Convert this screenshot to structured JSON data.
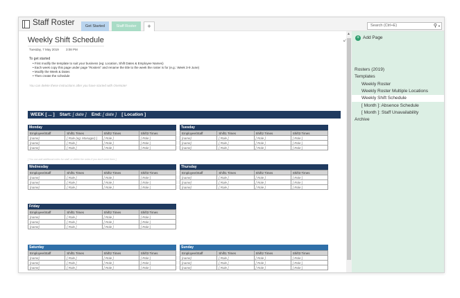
{
  "notebook": {
    "title": "Staff Roster"
  },
  "tabs": [
    {
      "label": "Get Started"
    },
    {
      "label": "Staff Roster"
    },
    {
      "label": "+"
    }
  ],
  "search": {
    "placeholder": "Search (Ctrl+E)"
  },
  "nav": {
    "add_page": "Add Page",
    "items": [
      {
        "label": "Rosters (2019)"
      },
      {
        "label": "Templates"
      },
      {
        "label": "Weekly Roster"
      },
      {
        "label": "Weekly Roster Multiple Locations"
      },
      {
        "label": "Weekly Shift Schedule"
      },
      {
        "label": "[ Month ]: Absence Schedule"
      },
      {
        "label": "[ Month ]: Staff Unavailability"
      },
      {
        "label": "Archive"
      }
    ]
  },
  "page": {
    "title": "Weekly Shift Schedule",
    "date": "Tuesday, 7 May 2019",
    "time": "3:08 PM",
    "instructions_heading": "To get started",
    "instructions": [
      "First modify the template to suit your business (eg: Location, Shift Dates & Employee Names)",
      "Each week copy this page under page \"Rosters\" and rename the title to the week the roster is for (e.g.: Week 3-9 June)",
      "Modify the Week & Dates",
      "Then create the schedule"
    ],
    "delete_note": "You can delete these instructions after you have started with OneNote!"
  },
  "week_bar": {
    "week_label": "WEEK",
    "week_value": "[ ... ]",
    "start_label": "Start:",
    "start_value": "[ date ]",
    "end_label": "End:",
    "end_value": "[ date ]",
    "location": "[ Location ]"
  },
  "table_headers": [
    "Employee/Staff",
    "Shift1 Times",
    "Shift2 Times",
    "Shift3 Times"
  ],
  "monday_note": "[ You can add additional notes for staff, or delete the notes if you don't need them ]",
  "colors": {
    "dark_day": "#1f3a5f",
    "light_day": "#2f6fa8"
  },
  "days": [
    {
      "name": "Monday",
      "rows": [
        [
          "[name]",
          "[ Role (eg: Manager) ]",
          "[ Role ]",
          "[ Role ]"
        ],
        [
          "[name]",
          "[ Role ]",
          "[ Role ]",
          "[ Role ]"
        ],
        [
          "[name]",
          "[ Role ]",
          "[ Role ]",
          "[ Role ]"
        ]
      ]
    },
    {
      "name": "Tuesday",
      "rows": [
        [
          "[name]",
          "[ Role ]",
          "[ Role ]",
          "[ Role ]"
        ],
        [
          "[name]",
          "[ Role ]",
          "[ Role ]",
          "[ Role ]"
        ],
        [
          "[name]",
          "[ Role ]",
          "[ Role ]",
          "[ Role ]"
        ]
      ]
    },
    {
      "name": "Wednesday",
      "rows": [
        [
          "[name]",
          "[ Role ]",
          "[ Role ]",
          "[ Role ]"
        ],
        [
          "[name]",
          "[ Role ]",
          "[ Role ]",
          "[ Role ]"
        ],
        [
          "[name]",
          "[ Role ]",
          "[ Role ]",
          "[ Role ]"
        ]
      ]
    },
    {
      "name": "Thursday",
      "rows": [
        [
          "[name]",
          "[ Role ]",
          "[ Role ]",
          "[ Role ]"
        ],
        [
          "[name]",
          "[ Role ]",
          "[ Role ]",
          "[ Role ]"
        ],
        [
          "[name]",
          "[ Role ]",
          "[ Role ]",
          "[ Role ]"
        ]
      ]
    },
    {
      "name": "Friday",
      "rows": [
        [
          "[name]",
          "[ Role ]",
          "[ Role ]",
          "[ Role ]"
        ],
        [
          "[name]",
          "[ Role ]",
          "[ Role ]",
          "[ Role ]"
        ],
        [
          "[name]",
          "[ Role ]",
          "[ Role ]",
          "[ Role ]"
        ]
      ]
    },
    {
      "name": "Saturday",
      "rows": [
        [
          "[name]",
          "[ Role ]",
          "[ Role ]",
          "[ Role ]"
        ],
        [
          "[name]",
          "[ Role ]",
          "[ Role ]",
          "[ Role ]"
        ],
        [
          "[name]",
          "[ Role ]",
          "[ Role ]",
          "[ Role ]"
        ]
      ]
    },
    {
      "name": "Sunday",
      "rows": [
        [
          "[name]",
          "[ Role ]",
          "[ Role ]",
          "[ Role ]"
        ],
        [
          "[name]",
          "[ Role ]",
          "[ Role ]",
          "[ Role ]"
        ],
        [
          "[name]",
          "[ Role ]",
          "[ Role ]",
          "[ Role ]"
        ]
      ]
    }
  ]
}
